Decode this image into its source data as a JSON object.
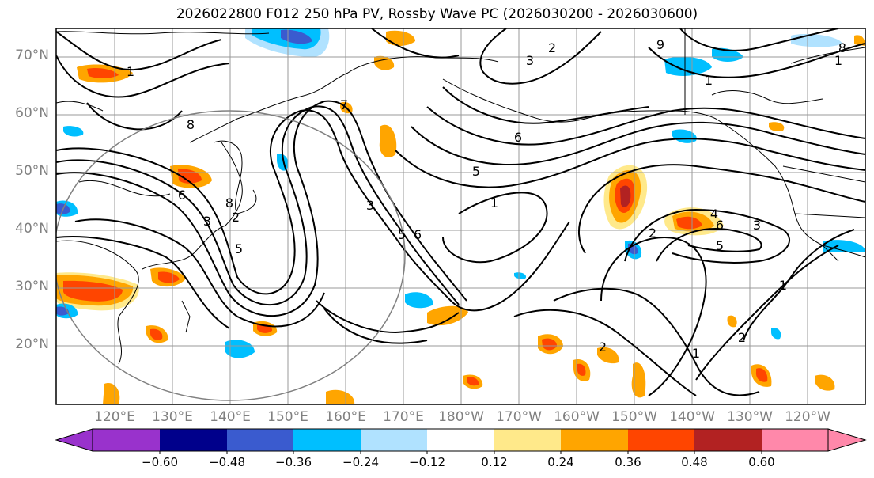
{
  "title": "2026022800 F012 250 hPa PV, Rossby Wave PC (2026030200 - 2026030600)",
  "lat_labels": [
    "70°N",
    "60°N",
    "50°N",
    "40°N",
    "30°N",
    "20°N"
  ],
  "lon_labels": [
    "120°E",
    "130°E",
    "140°E",
    "150°E",
    "160°E",
    "170°E",
    "180°W",
    "170°W",
    "160°W",
    "150°W",
    "140°W",
    "130°W",
    "120°W"
  ],
  "colorbar": {
    "ticks": [
      "−0.60",
      "−0.48",
      "−0.36",
      "−0.24",
      "−0.12",
      "0.12",
      "0.24",
      "0.36",
      "0.48",
      "0.60"
    ],
    "colors": [
      "#9932CC",
      "#00008B",
      "#3A5BCF",
      "#00BFFF",
      "#B0E2FF",
      "#FFFFFF",
      "#FFE98A",
      "#FFA500",
      "#FF4500",
      "#B22222",
      "#FF88AA"
    ]
  },
  "contour_labels": [
    "1",
    "3",
    "6",
    "8",
    "7",
    "6",
    "3",
    "8",
    "2",
    "5",
    "3",
    "6",
    "5",
    "1",
    "5",
    "9",
    "1",
    "2",
    "6",
    "5",
    "4",
    "3",
    "1",
    "1",
    "2",
    "2",
    "8",
    "1",
    "2"
  ]
}
